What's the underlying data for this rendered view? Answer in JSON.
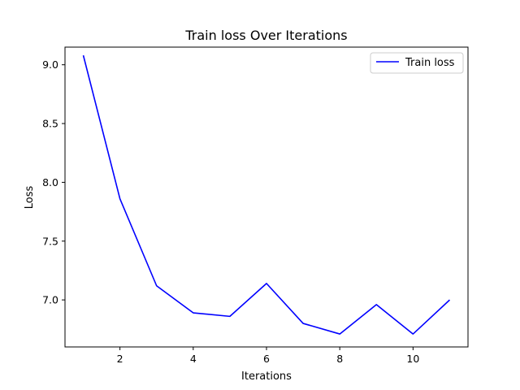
{
  "chart_data": {
    "type": "line",
    "title": "Train loss Over Iterations",
    "xlabel": "Iterations",
    "ylabel": "Loss",
    "x": [
      1,
      2,
      3,
      4,
      5,
      6,
      7,
      8,
      9,
      10,
      11
    ],
    "series": [
      {
        "name": "Train loss",
        "color": "#0000ff",
        "values": [
          9.08,
          7.86,
          7.12,
          6.89,
          6.86,
          7.14,
          6.8,
          6.71,
          6.96,
          6.71,
          7.0
        ]
      }
    ],
    "xlim": [
      0.5,
      11.5
    ],
    "ylim": [
      6.6,
      9.15
    ],
    "xticks": [
      2,
      4,
      6,
      8,
      10
    ],
    "yticks": [
      7.0,
      7.5,
      8.0,
      8.5,
      9.0
    ],
    "xtick_labels": [
      "2",
      "4",
      "6",
      "8",
      "10"
    ],
    "ytick_labels": [
      "7.0",
      "7.5",
      "8.0",
      "8.5",
      "9.0"
    ],
    "grid": false,
    "legend_position": "top-right"
  }
}
